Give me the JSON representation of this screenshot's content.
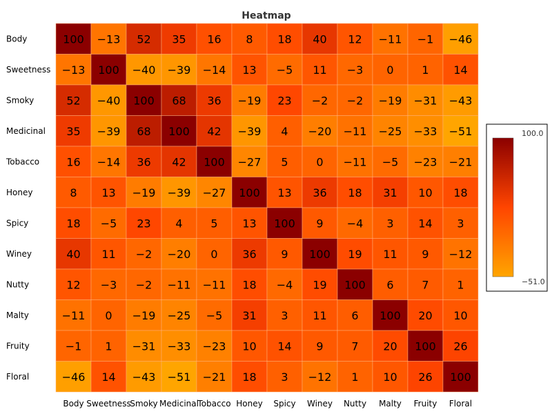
{
  "chart_data": {
    "type": "heatmap",
    "title": "Heatmap",
    "rows": [
      "Body",
      "Sweetness",
      "Smoky",
      "Medicinal",
      "Tobacco",
      "Honey",
      "Spicy",
      "Winey",
      "Nutty",
      "Malty",
      "Fruity",
      "Floral"
    ],
    "columns": [
      "Body",
      "Sweetness",
      "Smoky",
      "Medicinal",
      "Tobacco",
      "Honey",
      "Spicy",
      "Winey",
      "Nutty",
      "Malty",
      "Fruity",
      "Floral"
    ],
    "values": [
      [
        100,
        -13,
        52,
        35,
        16,
        8,
        18,
        40,
        12,
        -11,
        -1,
        -46
      ],
      [
        -13,
        100,
        -40,
        -39,
        -14,
        13,
        -5,
        11,
        -3,
        0,
        1,
        14
      ],
      [
        52,
        -40,
        100,
        68,
        36,
        -19,
        23,
        -2,
        -2,
        -19,
        -31,
        -43
      ],
      [
        35,
        -39,
        68,
        100,
        42,
        -39,
        4,
        -20,
        -11,
        -25,
        -33,
        -51
      ],
      [
        16,
        -14,
        36,
        42,
        100,
        -27,
        5,
        0,
        -11,
        -5,
        -23,
        -21
      ],
      [
        8,
        13,
        -19,
        -39,
        -27,
        100,
        13,
        36,
        18,
        31,
        10,
        18
      ],
      [
        18,
        -5,
        23,
        4,
        5,
        13,
        100,
        9,
        -4,
        3,
        14,
        3
      ],
      [
        40,
        11,
        -2,
        -20,
        0,
        36,
        9,
        100,
        19,
        11,
        9,
        -12
      ],
      [
        12,
        -3,
        -2,
        -11,
        -11,
        18,
        -4,
        19,
        100,
        6,
        7,
        1
      ],
      [
        -11,
        0,
        -19,
        -25,
        -5,
        31,
        3,
        11,
        6,
        100,
        20,
        10
      ],
      [
        -1,
        1,
        -31,
        -33,
        -23,
        10,
        14,
        9,
        7,
        20,
        100,
        26
      ],
      [
        -46,
        14,
        -43,
        -51,
        -21,
        18,
        3,
        -12,
        1,
        10,
        26,
        100
      ]
    ],
    "colorbar": {
      "max": 100.0,
      "min": -51.0,
      "max_label": "100.0",
      "min_label": "−51.0"
    },
    "colors": {
      "low": "#ffa500",
      "mid": "#ff4500",
      "high": "#8b0000",
      "cell_border": "#ffb380"
    }
  }
}
